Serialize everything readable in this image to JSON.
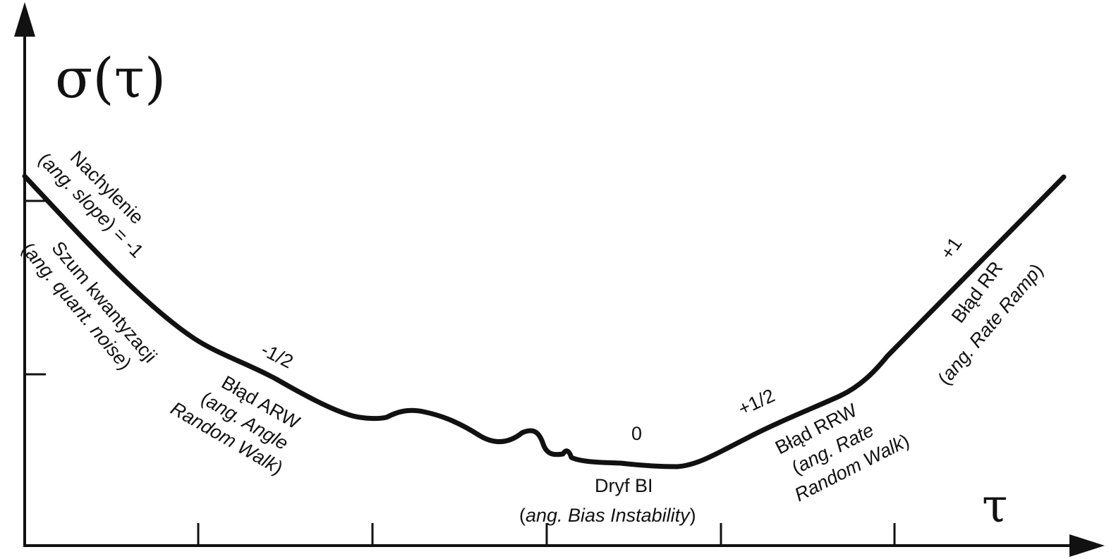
{
  "y_axis_label": "σ(τ)",
  "x_axis_label": "τ",
  "annotations": {
    "left_slope": {
      "line1": "Nachylenie",
      "line2_pre": "(",
      "line2_it": "ang. slope",
      "line2_post": ") = -1"
    },
    "quant_noise": {
      "line1": "Szum kwantyzacji",
      "line2_pre": "(",
      "line2_it": "ang. quant. noise",
      "line2_post": ")"
    },
    "arw": {
      "slope": "-1/2",
      "line1": "Błąd ARW",
      "line2_pre": "(",
      "line2_it": "ang. Angle",
      "line3_it": "Random Walk",
      "line3_post": ")"
    },
    "bi": {
      "slope": "0",
      "line1": "Dryf BI",
      "line2_pre": "(",
      "line2_it": "ang. Bias Instability",
      "line2_post": ")"
    },
    "rrw": {
      "slope": "+1/2",
      "line1": "Błąd RRW",
      "line2_pre": "(",
      "line2_it": "ang. Rate",
      "line3_it": "Random Walk",
      "line3_post": ")"
    },
    "rr": {
      "slope": "+1",
      "line1": "Błąd RR",
      "line2_pre": "(",
      "line2_it": "ang. Rate Ramp",
      "line2_post": ")"
    }
  },
  "colors": {
    "ink": "#111111",
    "background": "#ffffff"
  }
}
